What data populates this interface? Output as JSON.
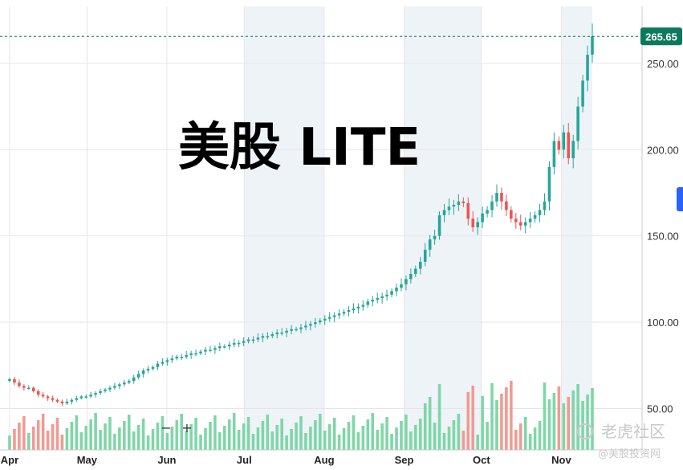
{
  "chart_data": {
    "type": "candlestick",
    "title": "美股 LITE",
    "last_price": "265.65",
    "y_ticks": [
      "250.00",
      "200.00",
      "150.00",
      "100.00",
      "50.00"
    ],
    "y_tick_values": [
      250,
      200,
      150,
      100,
      50
    ],
    "ylim": [
      26,
      283
    ],
    "x_ticks": [
      "Apr",
      "May",
      "Jun",
      "Jul",
      "Aug",
      "Sep",
      "Oct",
      "Nov"
    ],
    "x_tick_days": [
      0,
      30,
      61,
      91,
      122,
      153,
      183,
      214
    ],
    "first_day": 0,
    "last_day": 226,
    "weekend_bands": [
      [
        0,
        0
      ],
      [
        91,
        122
      ],
      [
        153,
        183
      ],
      [
        214,
        226
      ]
    ],
    "closes": [
      67,
      65,
      63,
      62,
      62,
      60,
      58,
      57,
      56,
      55,
      54,
      53,
      54,
      55,
      56,
      57,
      57,
      58,
      59,
      60,
      61,
      62,
      63,
      64,
      65,
      66,
      68,
      70,
      72,
      73,
      74,
      76,
      77,
      78,
      79,
      80,
      80,
      81,
      82,
      82,
      83,
      84,
      84,
      85,
      86,
      86,
      87,
      88,
      88,
      89,
      90,
      90,
      91,
      92,
      92,
      93,
      94,
      94,
      95,
      96,
      96,
      97,
      98,
      99,
      100,
      101,
      102,
      103,
      104,
      105,
      106,
      107,
      108,
      109,
      110,
      112,
      113,
      114,
      115,
      116,
      118,
      120,
      122,
      125,
      128,
      131,
      135,
      142,
      148,
      150,
      162,
      165,
      167,
      168,
      170,
      169,
      160,
      155,
      158,
      163,
      165,
      170,
      175,
      170,
      165,
      160,
      158,
      156,
      158,
      160,
      162,
      165,
      170,
      190,
      205,
      200,
      210,
      195,
      205,
      225,
      240,
      255,
      265.65
    ],
    "colors": {
      "up": "#26a69a",
      "down": "#ef5350",
      "vol_up": "#7fd6a8",
      "vol_down": "#f29a92",
      "price_tag": "#0b7a5c",
      "band": "#eef3f8",
      "grid": "#e6e6e6"
    },
    "zoom_out_label": "−",
    "zoom_in_label": "+",
    "watermark_tiger": "老虎社区",
    "watermark_handle": "@美股投资网"
  }
}
